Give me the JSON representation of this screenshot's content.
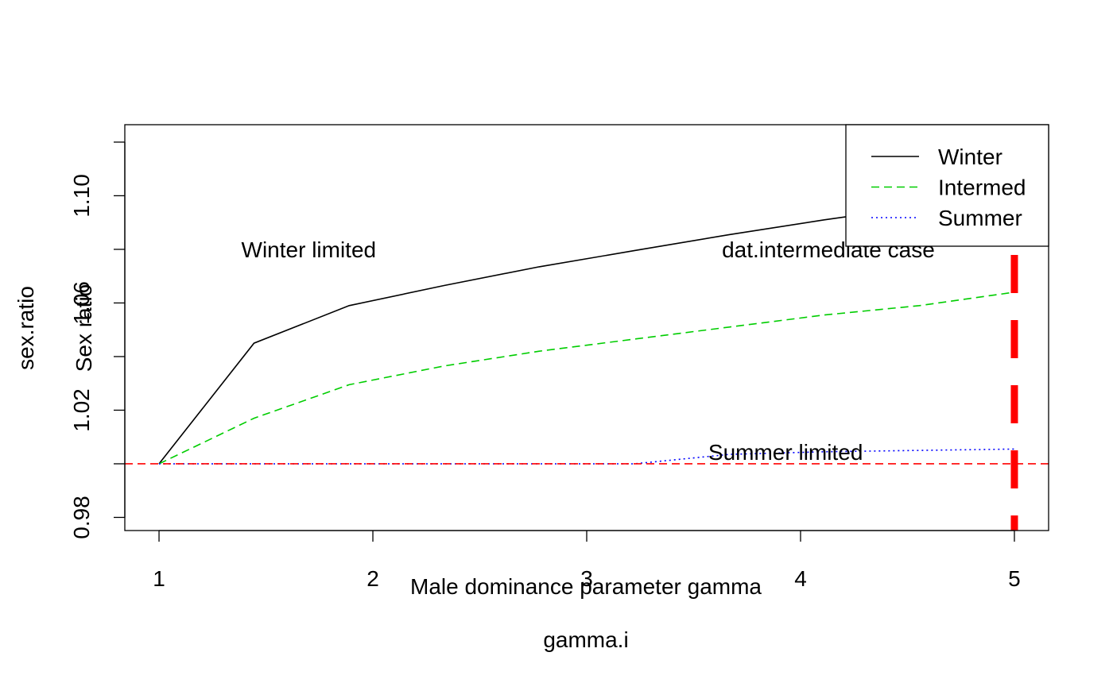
{
  "chart_data": {
    "type": "line",
    "xlabel": "gamma.i",
    "ylabel": "sex.ratio",
    "overlay_xlabel": "Male dominance parameter gamma",
    "overlay_ylabel": "Sex ratio",
    "xlim": [
      0.84,
      5.16
    ],
    "ylim": [
      0.9751,
      1.1265
    ],
    "x_ticks": [
      1,
      2,
      3,
      4,
      5
    ],
    "y_ticks": [
      0.98,
      1.0,
      1.02,
      1.04,
      1.06,
      1.08,
      1.1,
      1.12
    ],
    "y_tick_labels": [
      "0.98",
      "",
      "1.02",
      "",
      "1.06",
      "",
      "1.10",
      ""
    ],
    "x": [
      1.0,
      1.444,
      1.889,
      2.333,
      2.778,
      3.222,
      3.667,
      4.111,
      4.556,
      5.0
    ],
    "series": [
      {
        "name": "Winter",
        "color": "#000000",
        "dash": "solid",
        "values": [
          1.0,
          1.045,
          1.059,
          1.0665,
          1.0735,
          1.0795,
          1.0855,
          1.091,
          1.096,
          1.101
        ]
      },
      {
        "name": "Intermed",
        "color": "#00CD00",
        "dash": "dashed",
        "values": [
          1.0,
          1.017,
          1.0295,
          1.0365,
          1.042,
          1.0465,
          1.051,
          1.0555,
          1.059,
          1.064
        ]
      },
      {
        "name": "Summer",
        "color": "#0000FF",
        "dash": "dotted",
        "values": [
          1.0,
          1.0,
          1.0,
          1.0,
          1.0,
          1.0,
          1.0035,
          1.0045,
          1.005,
          1.0055
        ]
      }
    ],
    "hline": {
      "y": 1.0,
      "color": "#FF0000",
      "dash": "dashed"
    },
    "vline": {
      "x": 5.0,
      "color": "#FF0000",
      "dash": "dashed",
      "width": "thick"
    },
    "annotations": [
      {
        "text": "Winter limited",
        "x": 1.7,
        "y": 1.08
      },
      {
        "text": "dat.intermediate case",
        "x": 4.13,
        "y": 1.08
      },
      {
        "text": "Summer limited",
        "x": 3.93,
        "y": 1.0045
      }
    ],
    "legend": {
      "position": "top-right",
      "entries": [
        "Winter",
        "Intermed",
        "Summer"
      ]
    },
    "grid": false
  }
}
